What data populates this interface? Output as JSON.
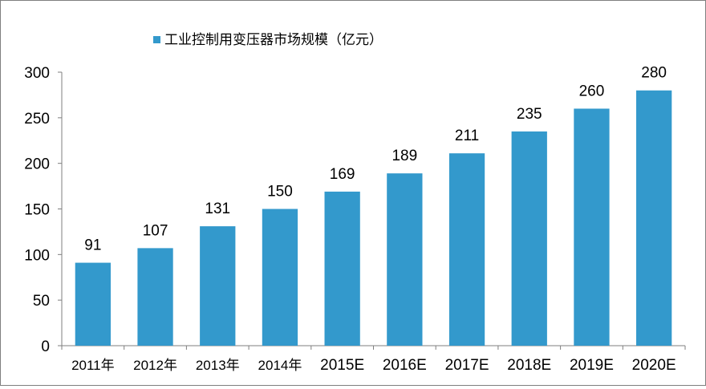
{
  "chart_data": {
    "type": "bar",
    "legend": {
      "label": "工业控制用变压器市场规模（亿元）",
      "position": "top"
    },
    "categories": [
      "2011年",
      "2012年",
      "2013年",
      "2014年",
      "2015E",
      "2016E",
      "2017E",
      "2018E",
      "2019E",
      "2020E"
    ],
    "series": [
      {
        "name": "工业控制用变压器市场规模（亿元）",
        "values": [
          91,
          107,
          131,
          150,
          169,
          189,
          211,
          235,
          260,
          280
        ]
      }
    ],
    "ylim": [
      0,
      300
    ],
    "yticks": [
      0,
      50,
      100,
      150,
      200,
      250,
      300
    ],
    "grid": false,
    "data_labels": true,
    "colors": {
      "bar": "#3399cc",
      "axis": "#7f7f7f",
      "text": "#000000"
    }
  }
}
